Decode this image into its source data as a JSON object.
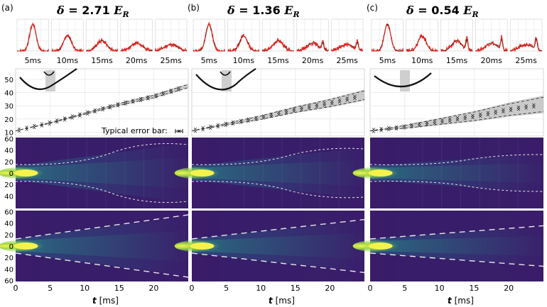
{
  "panels": [
    {
      "tag": "(a)",
      "delta_symbol": "δ",
      "delta_value": "= 2.71",
      "delta_unit": "E",
      "delta_sub": "R"
    },
    {
      "tag": "(b)",
      "delta_symbol": "δ",
      "delta_value": "= 1.36",
      "delta_unit": "E",
      "delta_sub": "R"
    },
    {
      "tag": "(c)",
      "delta_symbol": "δ",
      "delta_value": "= 0.54",
      "delta_unit": "E",
      "delta_sub": "R"
    }
  ],
  "time_labels": [
    "5ms",
    "10ms",
    "15ms",
    "20ms",
    "25ms"
  ],
  "width_axis_ticks": [
    "10",
    "20",
    "30",
    "40",
    "50"
  ],
  "density_axis_ticks": [
    "60",
    "40",
    "20",
    "0",
    "20",
    "40",
    "60"
  ],
  "x_axis_ticks": [
    "0",
    "5",
    "10",
    "15",
    "20"
  ],
  "x_axis_label_var": "t",
  "x_axis_label_unit": "[ms]",
  "error_bar_label": "Typical error bar:",
  "colors": {
    "experiment": "#e8231b",
    "theory": "#111111",
    "band": "#bdbdbd",
    "viridis_low": "#46085c",
    "viridis_mid": "#21918c",
    "viridis_high": "#fde725"
  },
  "chart_data": {
    "type": "line",
    "xlabel": "t [ms]",
    "x": [
      0,
      5,
      10,
      15,
      20,
      25
    ],
    "series": [
      {
        "values": [
          11,
          17,
          24,
          31,
          37,
          45
        ]
      },
      {
        "values": [
          11,
          16,
          21,
          27,
          32,
          38
        ]
      },
      {
        "values": [
          11,
          14,
          18,
          22,
          27,
          31
        ]
      }
    ]
  }
}
